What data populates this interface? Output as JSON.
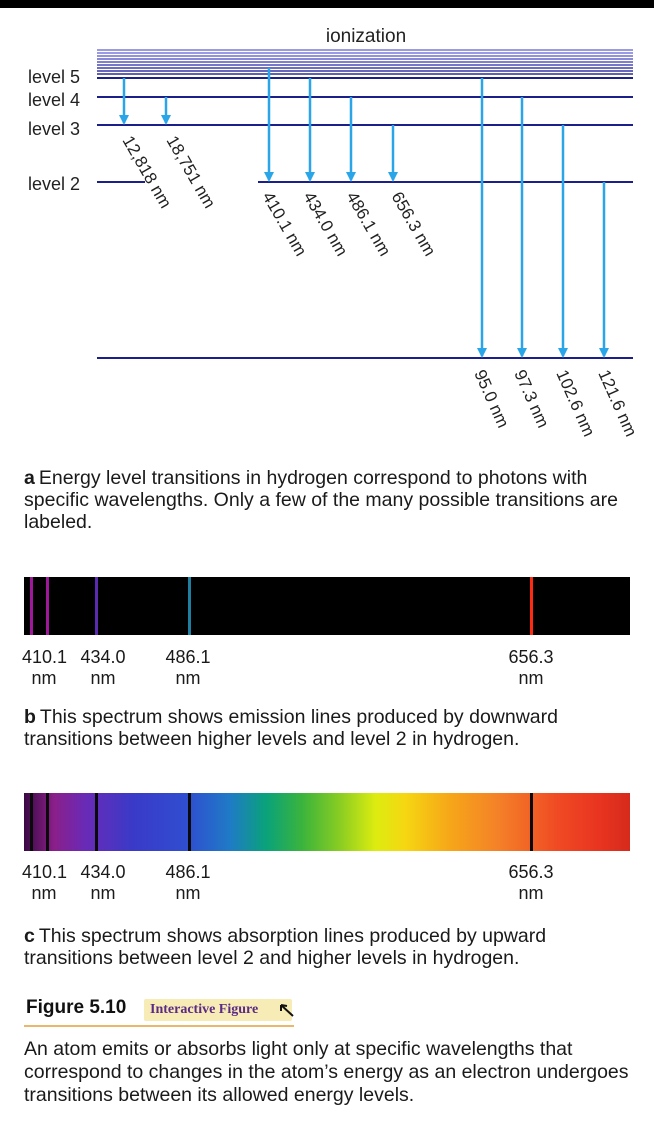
{
  "diagram": {
    "ionization_label": "ionization",
    "levels": [
      {
        "label": "level 5"
      },
      {
        "label": "level 4"
      },
      {
        "label": "level 3"
      },
      {
        "label": "level 2"
      }
    ],
    "transitions": [
      {
        "label": "12,818 nm",
        "from": "level 5",
        "to": "level 3"
      },
      {
        "label": "18,751 nm",
        "from": "level 4",
        "to": "level 3"
      },
      {
        "label": "410.1 nm",
        "from": "level 6",
        "to": "level 2"
      },
      {
        "label": "434.0 nm",
        "from": "level 5",
        "to": "level 2"
      },
      {
        "label": "486.1 nm",
        "from": "level 4",
        "to": "level 2"
      },
      {
        "label": "656.3 nm",
        "from": "level 3",
        "to": "level 2"
      },
      {
        "label": "95.0 nm",
        "from": "level 5",
        "to": "level 1"
      },
      {
        "label": "97.3 nm",
        "from": "level 4",
        "to": "level 1"
      },
      {
        "label": "102.6 nm",
        "from": "level 3",
        "to": "level 1"
      },
      {
        "label": "121.6 nm",
        "from": "level 2",
        "to": "level 1"
      }
    ],
    "arrow_color": "#2aa6e8",
    "level_color": "#1b1f8a"
  },
  "caption_a": {
    "letter": "a",
    "text": "Energy level transitions in hydrogen correspond to photons with specific wavelengths. Only a few of the many possible transitions are labeled."
  },
  "emission_spectrum": {
    "lines": [
      {
        "wavelength_nm": 397.0,
        "color": "#a0189a"
      },
      {
        "wavelength_nm": 410.1,
        "color": "#a0189a"
      },
      {
        "wavelength_nm": 434.0,
        "color": "#5a2ab0"
      },
      {
        "wavelength_nm": 486.1,
        "color": "#1f7fa0"
      },
      {
        "wavelength_nm": 656.3,
        "color": "#ff2a12"
      }
    ]
  },
  "wavelength_labels": [
    {
      "value": "410.1",
      "unit": "nm"
    },
    {
      "value": "434.0",
      "unit": "nm"
    },
    {
      "value": "486.1",
      "unit": "nm"
    },
    {
      "value": "656.3",
      "unit": "nm"
    }
  ],
  "caption_b": {
    "letter": "b",
    "text": "This spectrum shows emission lines produced by downward transitions between higher levels and level 2 in hydrogen."
  },
  "absorption_spectrum": {
    "lines": [
      {
        "wavelength_nm": 397.0
      },
      {
        "wavelength_nm": 410.1
      },
      {
        "wavelength_nm": 434.0
      },
      {
        "wavelength_nm": 486.1
      },
      {
        "wavelength_nm": 656.3
      }
    ]
  },
  "caption_c": {
    "letter": "c",
    "text": "This spectrum shows absorption lines produced by upward transitions between level 2 and higher levels in hydrogen."
  },
  "figure": {
    "number": "Figure 5.10",
    "badge": "Interactive Figure",
    "description": "An atom emits or absorbs light only at specific wavelengths that correspond to changes in the atom’s energy as an electron undergoes transitions between its allowed energy levels."
  }
}
